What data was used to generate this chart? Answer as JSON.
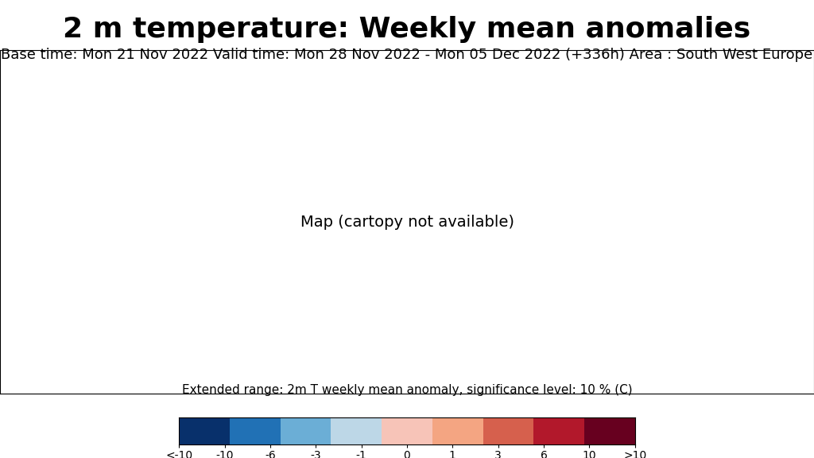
{
  "title": "2 m temperature: Weekly mean anomalies",
  "subtitle": "Base time: Mon 21 Nov 2022 Valid time: Mon 28 Nov 2022 - Mon 05 Dec 2022 (+336h) Area : South West Europe",
  "colorbar_label": "Extended range: 2m T weekly mean anomaly, significance level: 10 % (C)",
  "colorbar_ticks": [
    "<-10",
    "-10",
    "-6",
    "-3",
    "-1",
    "0",
    "1",
    "3",
    "6",
    "10",
    ">10"
  ],
  "cb_colors": [
    "#08306b",
    "#2171b5",
    "#6baed6",
    "#bdd7e7",
    "#f7c4b8",
    "#f4a582",
    "#d6604d",
    "#b2182b",
    "#67001f"
  ],
  "cb_boundaries": [
    -10,
    -6,
    -3,
    -1,
    0,
    1,
    3,
    6,
    10
  ],
  "title_fontsize": 26,
  "subtitle_fontsize": 13,
  "background_color": "#ffffff"
}
